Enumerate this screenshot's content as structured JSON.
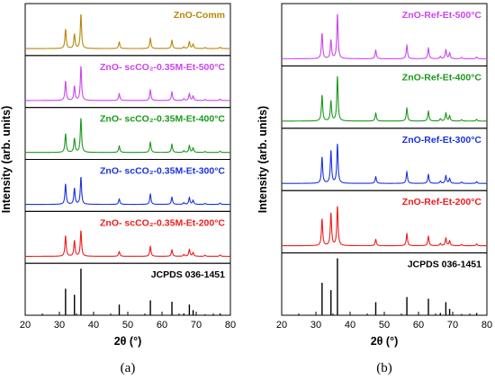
{
  "figure": {
    "panel_a_caption": "(a)",
    "panel_b_caption": "(b)"
  },
  "chart_data": [
    {
      "type": "line",
      "panel": "(a)",
      "xlabel": "2θ (°)",
      "ylabel": "Intensity (arb. units)",
      "xlim": [
        20,
        80
      ],
      "xticks": [
        20,
        30,
        40,
        50,
        60,
        70,
        80
      ],
      "grid": false,
      "subplots": [
        {
          "label": "ZnO-Comm",
          "color": "#B8860B",
          "kind": "xrd",
          "peaks": [
            [
              31.8,
              0.57
            ],
            [
              34.4,
              0.42
            ],
            [
              36.3,
              1.0
            ],
            [
              47.5,
              0.19
            ],
            [
              56.6,
              0.3
            ],
            [
              62.9,
              0.24
            ],
            [
              66.4,
              0.05
            ],
            [
              68.0,
              0.2
            ],
            [
              69.1,
              0.13
            ],
            [
              72.6,
              0.03
            ],
            [
              77.0,
              0.04
            ]
          ]
        },
        {
          "label": "ZnO- scCO₂-0.35M-Et-500°C",
          "color": "#CC44EE",
          "kind": "xrd",
          "peaks": [
            [
              31.8,
              0.57
            ],
            [
              34.4,
              0.42
            ],
            [
              36.3,
              1.0
            ],
            [
              47.5,
              0.2
            ],
            [
              56.6,
              0.31
            ],
            [
              62.9,
              0.25
            ],
            [
              66.4,
              0.05
            ],
            [
              68.0,
              0.2
            ],
            [
              69.1,
              0.13
            ],
            [
              72.6,
              0.03
            ],
            [
              77.0,
              0.04
            ]
          ]
        },
        {
          "label": "ZnO- scCO₂-0.35M-Et-400°C",
          "color": "#1A9A1A",
          "kind": "xrd",
          "peaks": [
            [
              31.8,
              0.55
            ],
            [
              34.4,
              0.41
            ],
            [
              36.3,
              1.0
            ],
            [
              47.5,
              0.19
            ],
            [
              56.6,
              0.3
            ],
            [
              62.9,
              0.24
            ],
            [
              66.4,
              0.05
            ],
            [
              68.0,
              0.2
            ],
            [
              69.1,
              0.13
            ],
            [
              72.6,
              0.03
            ],
            [
              77.0,
              0.04
            ]
          ]
        },
        {
          "label": "ZnO- scCO₂-0.35M-Et-300°C",
          "color": "#1A33DD",
          "kind": "xrd",
          "peaks": [
            [
              31.8,
              0.6
            ],
            [
              34.4,
              0.47
            ],
            [
              36.3,
              0.8
            ],
            [
              47.5,
              0.16
            ],
            [
              56.6,
              0.3
            ],
            [
              62.9,
              0.21
            ],
            [
              66.4,
              0.05
            ],
            [
              68.0,
              0.2
            ],
            [
              69.1,
              0.12
            ],
            [
              72.6,
              0.03
            ],
            [
              77.0,
              0.04
            ]
          ]
        },
        {
          "label": "ZnO- scCO₂-0.35M-Et-200°C",
          "color": "#EE1C1C",
          "kind": "xrd",
          "peaks": [
            [
              31.8,
              0.6
            ],
            [
              34.4,
              0.46
            ],
            [
              36.3,
              0.75
            ],
            [
              47.5,
              0.14
            ],
            [
              56.6,
              0.29
            ],
            [
              62.9,
              0.19
            ],
            [
              66.4,
              0.05
            ],
            [
              68.0,
              0.2
            ],
            [
              69.1,
              0.11
            ],
            [
              72.6,
              0.03
            ],
            [
              77.0,
              0.04
            ]
          ]
        },
        {
          "label": "JCPDS 036-1451",
          "color": "#000000",
          "kind": "reference",
          "peaks": [
            [
              31.8,
              0.57
            ],
            [
              34.4,
              0.44
            ],
            [
              36.3,
              1.0
            ],
            [
              47.5,
              0.23
            ],
            [
              56.6,
              0.32
            ],
            [
              62.9,
              0.29
            ],
            [
              66.4,
              0.04
            ],
            [
              68.0,
              0.23
            ],
            [
              69.1,
              0.11
            ],
            [
              72.6,
              0.02
            ],
            [
              77.0,
              0.04
            ]
          ]
        }
      ]
    },
    {
      "type": "line",
      "panel": "(b)",
      "xlabel": "2θ (°)",
      "ylabel": "Intensity (arb. units)",
      "xlim": [
        20,
        80
      ],
      "xticks": [
        20,
        30,
        40,
        50,
        60,
        70,
        80
      ],
      "grid": false,
      "subplots": [
        {
          "label": "ZnO-Ref-Et-500°C",
          "color": "#CC44EE",
          "kind": "xrd",
          "peaks": [
            [
              31.8,
              0.57
            ],
            [
              34.4,
              0.42
            ],
            [
              36.3,
              1.0
            ],
            [
              47.5,
              0.19
            ],
            [
              56.6,
              0.3
            ],
            [
              62.9,
              0.24
            ],
            [
              66.4,
              0.05
            ],
            [
              68.0,
              0.2
            ],
            [
              69.1,
              0.13
            ],
            [
              72.6,
              0.03
            ],
            [
              77.0,
              0.04
            ]
          ]
        },
        {
          "label": "ZnO-Ref-Et-400°C",
          "color": "#1A9A1A",
          "kind": "xrd",
          "peaks": [
            [
              31.8,
              0.58
            ],
            [
              34.4,
              0.45
            ],
            [
              36.3,
              1.0
            ],
            [
              47.5,
              0.18
            ],
            [
              56.6,
              0.29
            ],
            [
              62.9,
              0.22
            ],
            [
              66.4,
              0.05
            ],
            [
              68.0,
              0.18
            ],
            [
              69.1,
              0.12
            ],
            [
              72.6,
              0.03
            ],
            [
              77.0,
              0.04
            ]
          ]
        },
        {
          "label": "ZnO-Ref-Et-300°C",
          "color": "#1A33DD",
          "kind": "xrd",
          "peaks": [
            [
              31.8,
              0.59
            ],
            [
              34.4,
              0.73
            ],
            [
              36.3,
              0.88
            ],
            [
              47.5,
              0.15
            ],
            [
              56.6,
              0.26
            ],
            [
              62.9,
              0.2
            ],
            [
              66.4,
              0.05
            ],
            [
              68.0,
              0.17
            ],
            [
              69.1,
              0.11
            ],
            [
              72.6,
              0.03
            ],
            [
              77.0,
              0.04
            ]
          ]
        },
        {
          "label": "ZnO-Ref-Et-200°C",
          "color": "#EE1C1C",
          "kind": "xrd",
          "peaks": [
            [
              31.8,
              0.6
            ],
            [
              34.4,
              0.73
            ],
            [
              36.3,
              0.88
            ],
            [
              47.5,
              0.14
            ],
            [
              56.6,
              0.27
            ],
            [
              62.9,
              0.21
            ],
            [
              66.4,
              0.05
            ],
            [
              68.0,
              0.17
            ],
            [
              69.1,
              0.11
            ],
            [
              72.6,
              0.03
            ],
            [
              77.0,
              0.04
            ]
          ]
        },
        {
          "label": "JCPDS 036-1451",
          "color": "#000000",
          "kind": "reference",
          "peaks": [
            [
              31.8,
              0.57
            ],
            [
              34.4,
              0.44
            ],
            [
              36.3,
              1.0
            ],
            [
              47.5,
              0.23
            ],
            [
              56.6,
              0.32
            ],
            [
              62.9,
              0.29
            ],
            [
              66.4,
              0.04
            ],
            [
              68.0,
              0.23
            ],
            [
              69.1,
              0.11
            ],
            [
              72.6,
              0.02
            ],
            [
              77.0,
              0.04
            ]
          ]
        }
      ]
    }
  ]
}
